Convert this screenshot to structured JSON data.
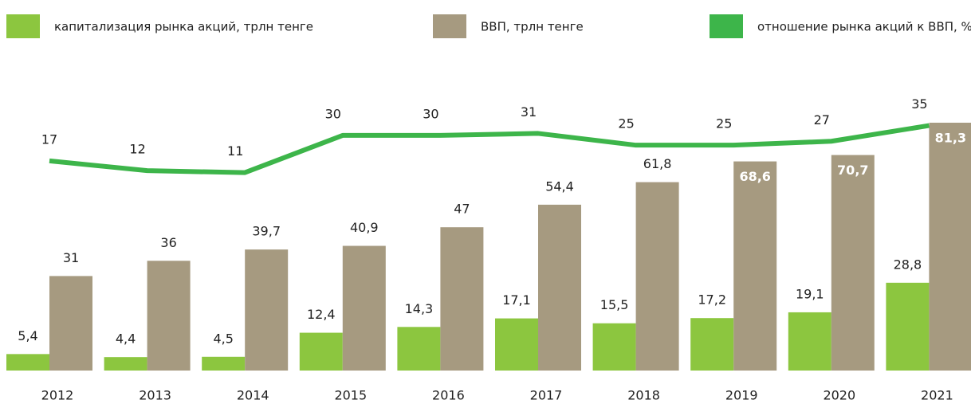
{
  "chart_data": {
    "type": "bar_line",
    "categories": [
      "2012",
      "2013",
      "2014",
      "2015",
      "2016",
      "2017",
      "2018",
      "2019",
      "2020",
      "2021"
    ],
    "series": [
      {
        "name": "капитализация рынка акций, трлн тенге",
        "color": "#8cc63f",
        "type": "bar",
        "values": [
          5.4,
          4.4,
          4.5,
          12.4,
          14.3,
          17.1,
          15.5,
          17.2,
          19.1,
          28.8
        ],
        "value_labels": [
          "5,4",
          "4,4",
          "4,5",
          "12,4",
          "14,3",
          "17,1",
          "15,5",
          "17,2",
          "19,1",
          "28,8"
        ]
      },
      {
        "name": "ВВП, трлн тенге",
        "color": "#a69a80",
        "type": "bar",
        "values": [
          31,
          36,
          39.7,
          40.9,
          47,
          54.4,
          61.8,
          68.6,
          70.7,
          81.3
        ],
        "value_labels": [
          "31",
          "36",
          "39,7",
          "40,9",
          "47",
          "54,4",
          "61,8",
          "68,6",
          "70,7",
          "81,3"
        ]
      },
      {
        "name": "отношение рынка акций к ВВП, %",
        "color": "#3db54a",
        "type": "line",
        "axis": "y2",
        "values": [
          17,
          12,
          11,
          30,
          30,
          31,
          25,
          25,
          27,
          35
        ]
      }
    ],
    "ylim": [
      0,
      90
    ],
    "y2lim": [
      -90,
      50
    ]
  }
}
